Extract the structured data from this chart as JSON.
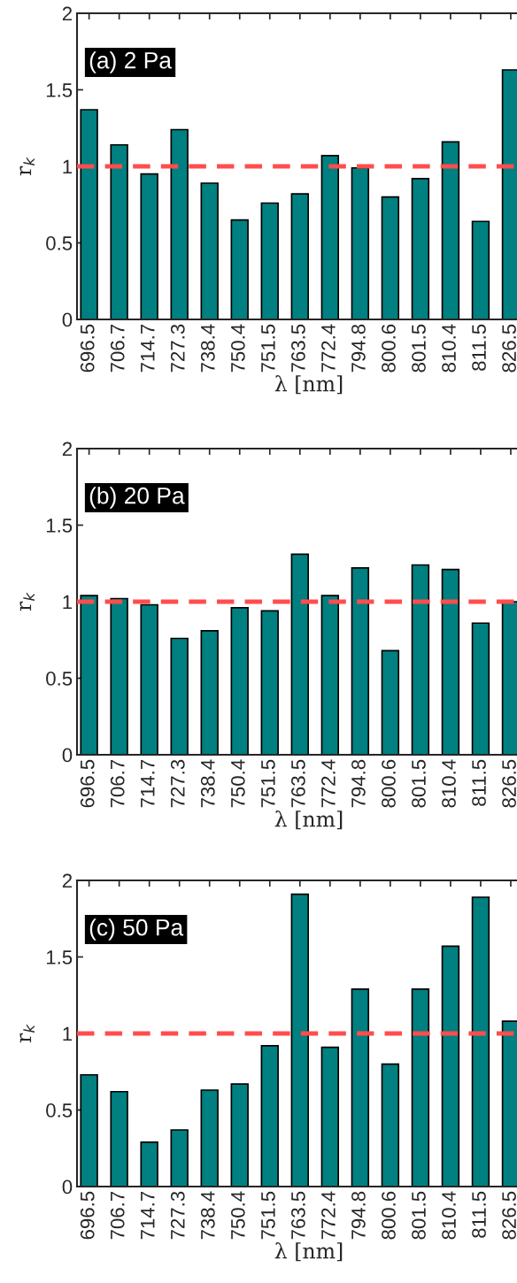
{
  "chart_data": [
    {
      "type": "bar",
      "title": "(a) 2 Pa",
      "xlabel": "λ [nm]",
      "ylabel": "r$_{k}$",
      "categories": [
        "696.5",
        "706.7",
        "714.7",
        "727.3",
        "738.4",
        "750.4",
        "751.5",
        "763.5",
        "772.4",
        "794.8",
        "800.6",
        "801.5",
        "810.4",
        "811.5",
        "826.5"
      ],
      "values": [
        1.37,
        1.14,
        0.95,
        1.24,
        0.89,
        0.65,
        0.76,
        0.82,
        1.07,
        0.99,
        0.8,
        0.92,
        1.16,
        0.64,
        1.63
      ],
      "color": "#008080",
      "ylim": [
        0,
        2
      ],
      "yticks": [
        0,
        0.5,
        1,
        1.5,
        2
      ],
      "ref_lines": [
        {
          "axis": "y",
          "value": 1,
          "color": "#ff4d4d",
          "line_style": "dashed"
        }
      ]
    },
    {
      "type": "bar",
      "title": "(b) 20 Pa",
      "xlabel": "λ [nm]",
      "ylabel": "r$_{k}$",
      "categories": [
        "696.5",
        "706.7",
        "714.7",
        "727.3",
        "738.4",
        "750.4",
        "751.5",
        "763.5",
        "772.4",
        "794.8",
        "800.6",
        "801.5",
        "810.4",
        "811.5",
        "826.5"
      ],
      "values": [
        1.04,
        1.02,
        0.98,
        0.76,
        0.81,
        0.96,
        0.94,
        1.31,
        1.04,
        1.22,
        0.68,
        1.24,
        1.21,
        0.86,
        1.0
      ],
      "color": "#008080",
      "ylim": [
        0,
        2
      ],
      "yticks": [
        0,
        0.5,
        1,
        1.5,
        2
      ],
      "ref_lines": [
        {
          "axis": "y",
          "value": 1,
          "color": "#ff4d4d",
          "line_style": "dashed"
        }
      ]
    },
    {
      "type": "bar",
      "title": "(c) 50 Pa",
      "xlabel": "λ [nm]",
      "ylabel": "r$_{k}$",
      "categories": [
        "696.5",
        "706.7",
        "714.7",
        "727.3",
        "738.4",
        "750.4",
        "751.5",
        "763.5",
        "772.4",
        "794.8",
        "800.6",
        "801.5",
        "810.4",
        "811.5",
        "826.5"
      ],
      "values": [
        0.73,
        0.62,
        0.29,
        0.37,
        0.63,
        0.67,
        0.92,
        1.91,
        0.91,
        1.29,
        0.8,
        1.29,
        1.57,
        1.89,
        1.08
      ],
      "color": "#008080",
      "ylim": [
        0,
        2
      ],
      "yticks": [
        0,
        0.5,
        1,
        1.5,
        2
      ],
      "ref_lines": [
        {
          "axis": "y",
          "value": 1,
          "color": "#ff4d4d",
          "line_style": "dashed"
        }
      ]
    }
  ]
}
